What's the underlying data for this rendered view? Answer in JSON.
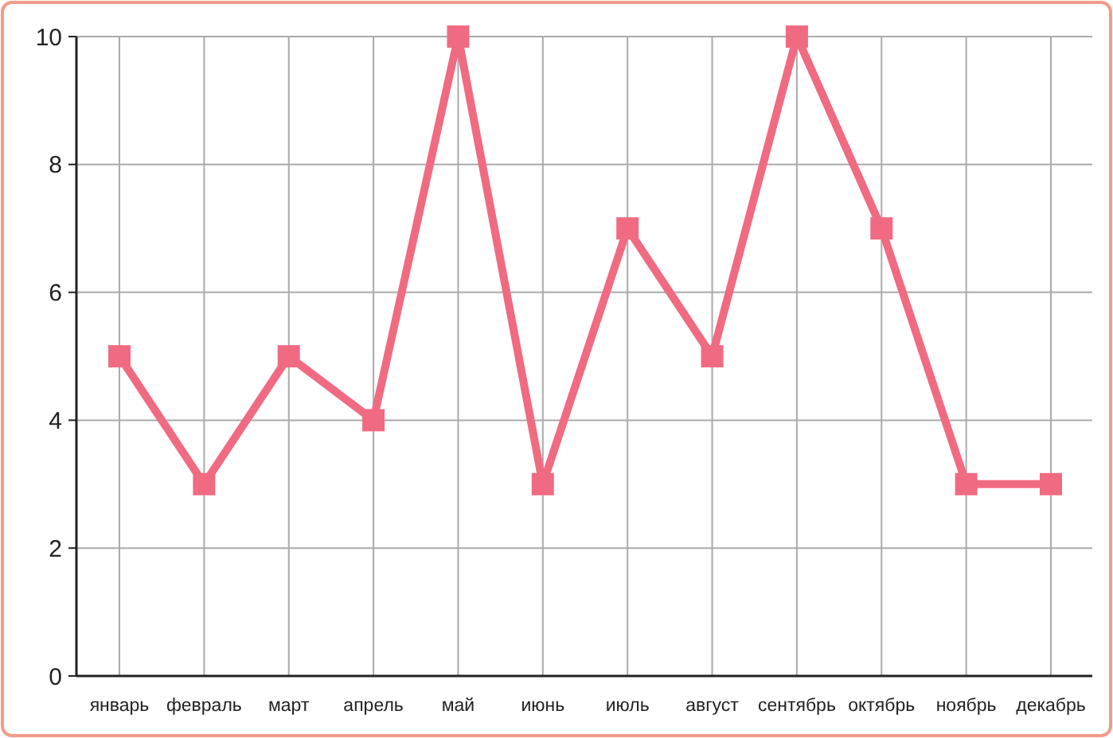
{
  "chart_data": {
    "type": "line",
    "categories": [
      "январь",
      "февраль",
      "март",
      "апрель",
      "май",
      "июнь",
      "июль",
      "август",
      "сентябрь",
      "октябрь",
      "ноябрь",
      "декабрь"
    ],
    "series": [
      {
        "color": "#f06b82",
        "values": [
          5,
          3,
          5,
          4,
          10,
          3,
          7,
          5,
          10,
          7,
          3,
          3
        ]
      }
    ],
    "ylim": [
      0,
      10
    ],
    "yticks": [
      0,
      2,
      4,
      6,
      8,
      10
    ],
    "grid": true,
    "marker": "square",
    "line_style": "solid"
  }
}
